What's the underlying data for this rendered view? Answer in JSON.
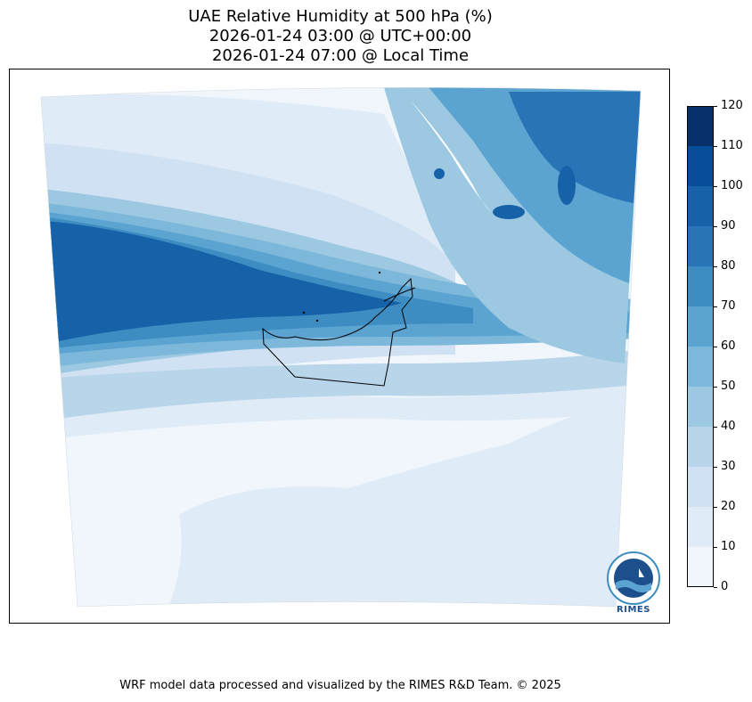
{
  "title": {
    "line1": "UAE Relative Humidity at 500 hPa (%)",
    "line2": "2026-01-24 03:00 @ UTC+00:00",
    "line3": "2026-01-24 07:00 @ Local Time"
  },
  "colorbar": {
    "ticks": [
      "0",
      "10",
      "20",
      "30",
      "40",
      "50",
      "60",
      "70",
      "80",
      "90",
      "100",
      "110",
      "120"
    ],
    "colors": [
      "#f0f6fc",
      "#dfebf7",
      "#cfe1f2",
      "#b8d5ea",
      "#9cc9e1",
      "#7db8da",
      "#5ba3d0",
      "#3d8dc3",
      "#2874b6",
      "#1661a8",
      "#084d97",
      "#08306b"
    ]
  },
  "logo": {
    "text": "RIMES"
  },
  "footer": "WRF model data processed and visualized by the RIMES R&D Team. © 2025"
}
